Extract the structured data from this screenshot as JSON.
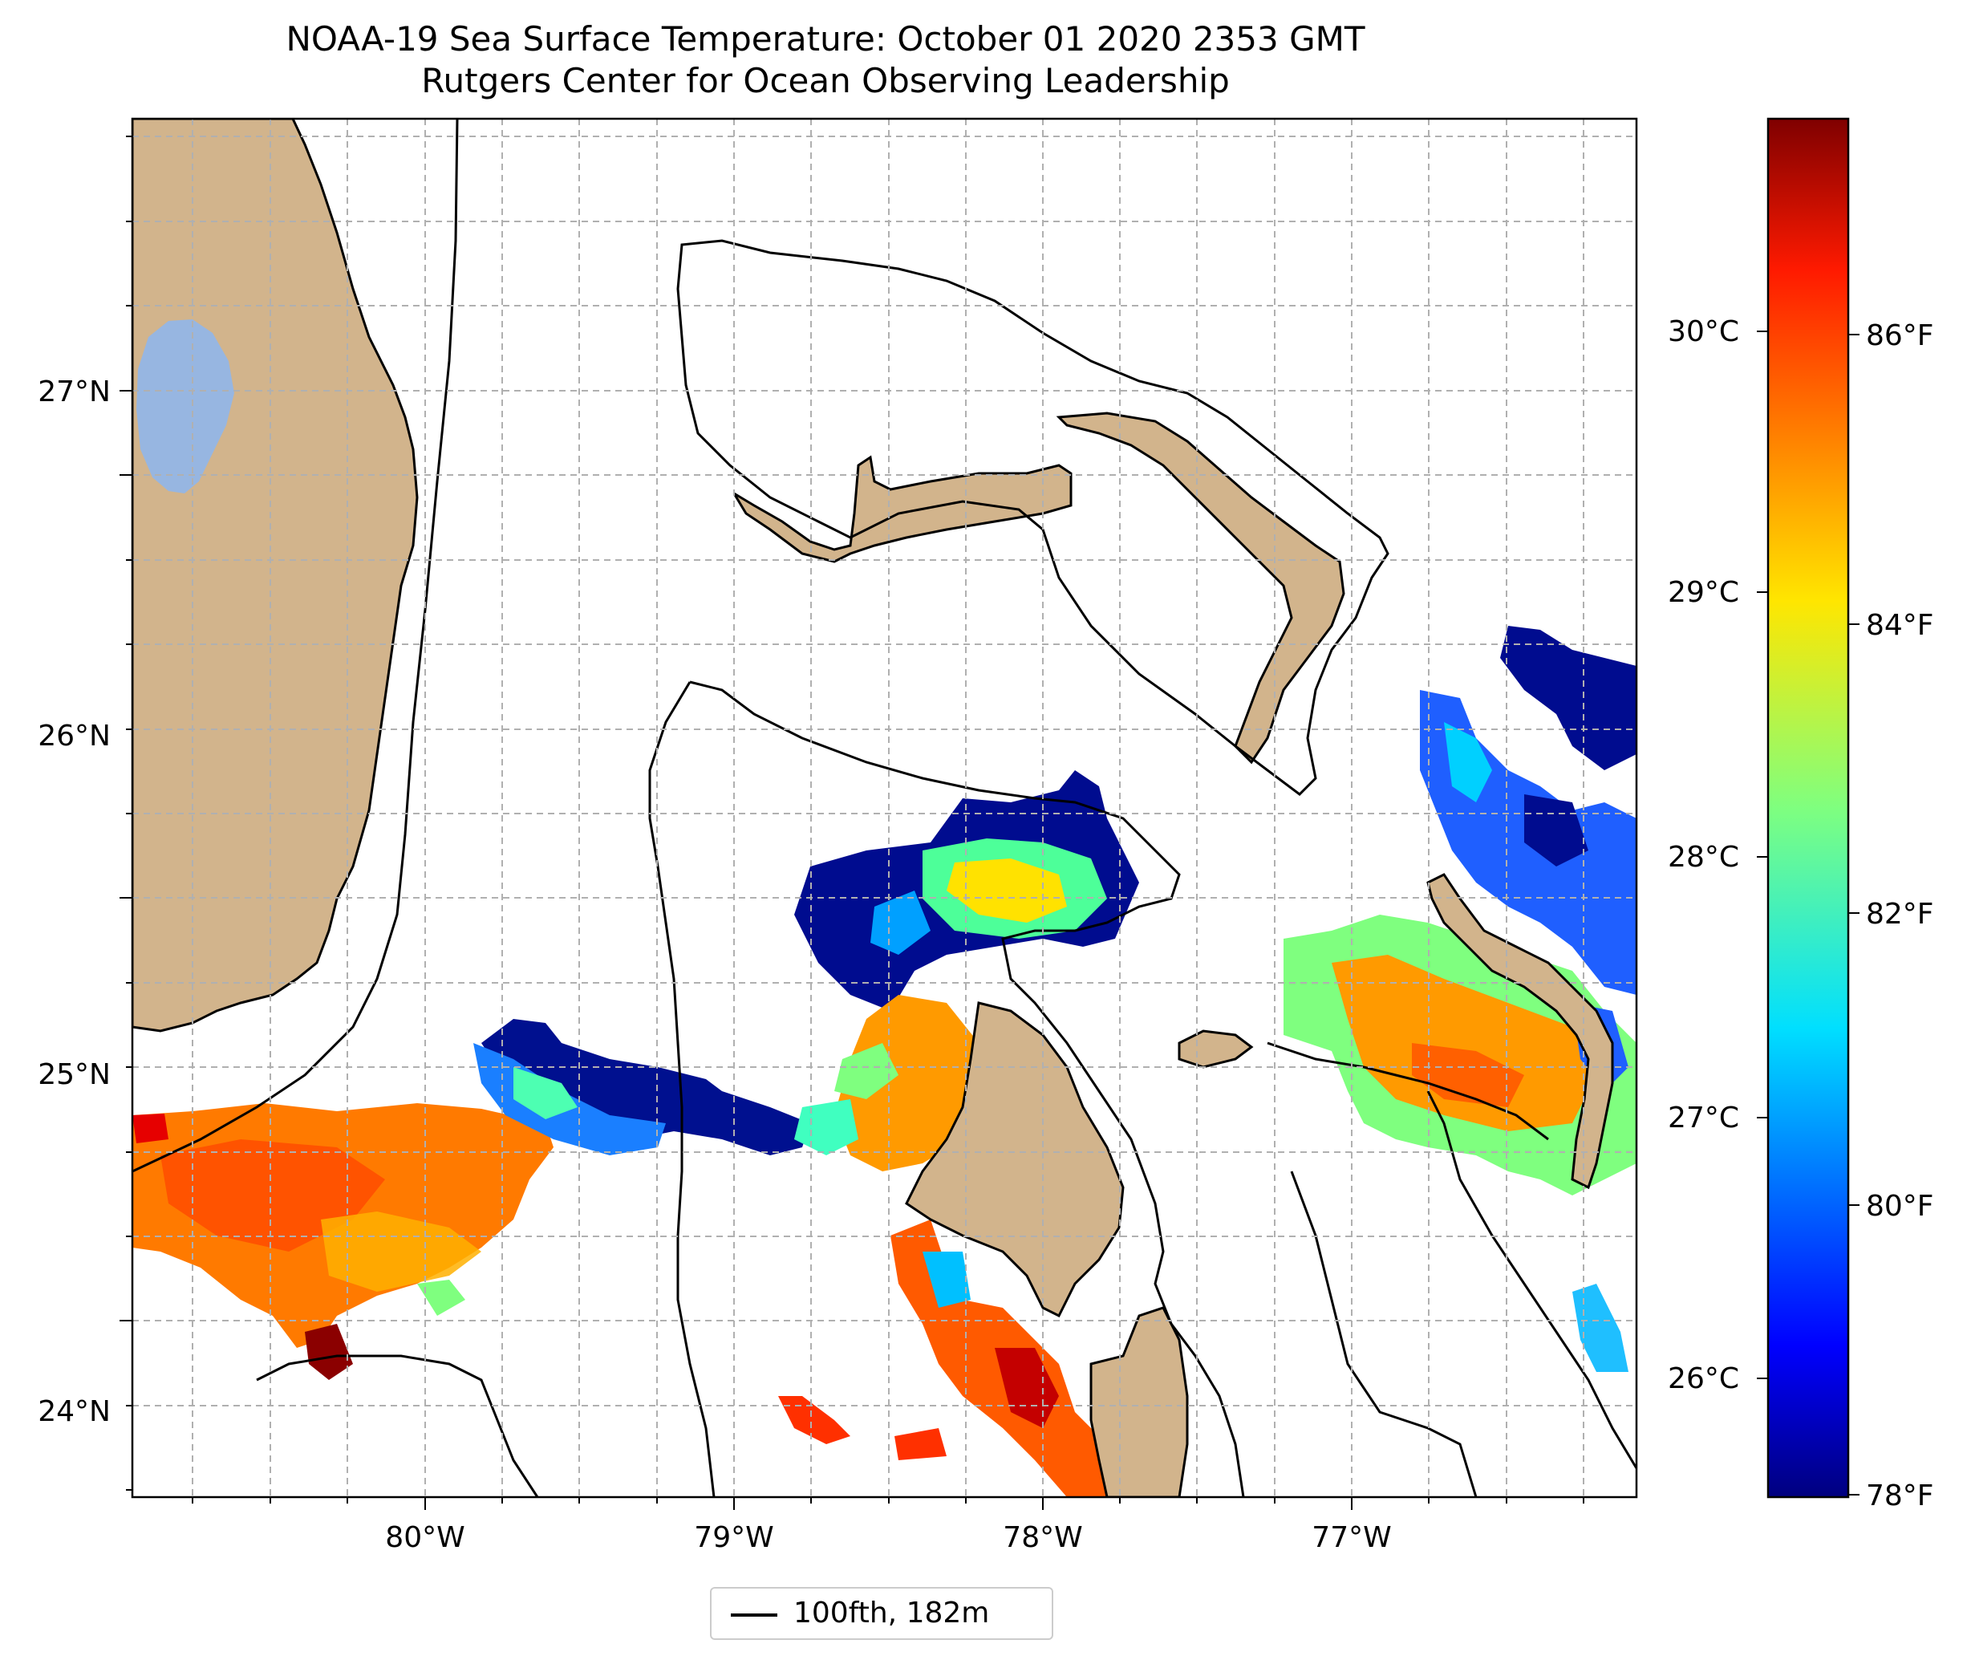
{
  "title": "NOAA-19 Sea Surface Temperature: October 01 2020 2353 GMT",
  "subtitle": "Rutgers Center for Ocean Observing Leadership",
  "map": {
    "lon_ticks": [
      "80°W",
      "79°W",
      "78°W",
      "77°W"
    ],
    "lat_ticks": [
      "24°N",
      "25°N",
      "26°N",
      "27°N"
    ],
    "grid": true,
    "land_color": "#d2b48c",
    "lake_color": "#97b6e1"
  },
  "colorbar": {
    "colormap": "jet",
    "celsius_ticks": [
      "26°C",
      "27°C",
      "28°C",
      "29°C",
      "30°C"
    ],
    "fahrenheit_ticks": [
      "78°F",
      "80°F",
      "82°F",
      "84°F",
      "86°F"
    ],
    "min_f": 78,
    "max_f": 87.7
  },
  "legend": {
    "label": "100fth, 182m",
    "placement": "bottom-center"
  }
}
